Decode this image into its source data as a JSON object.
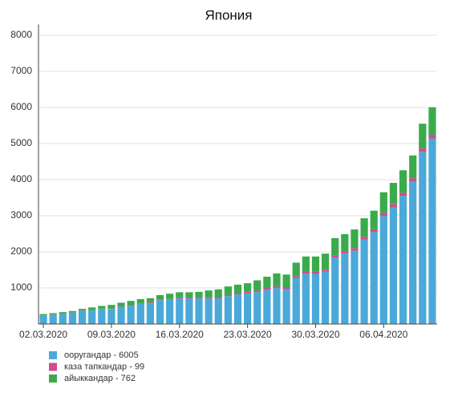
{
  "chart_data": {
    "type": "stacked_bar",
    "title": "Япония",
    "categories": [
      "02.03.2020",
      null,
      null,
      null,
      null,
      null,
      null,
      "09.03.2020",
      null,
      null,
      null,
      null,
      null,
      null,
      "16.03.2020",
      null,
      null,
      null,
      null,
      null,
      null,
      "23.03.2020",
      null,
      null,
      null,
      null,
      null,
      null,
      "30.03.2020",
      null,
      null,
      null,
      null,
      null,
      null,
      "06.04.2020",
      null,
      null,
      null,
      null,
      null
    ],
    "series": [
      {
        "name": "ооругандар - 6005",
        "color": "#4ba9d9",
        "values": [
          237,
          251,
          281,
          308,
          368,
          378,
          418,
          420,
          478,
          507,
          556,
          576,
          660,
          674,
          708,
          707,
          715,
          707,
          712,
          773,
          819,
          854,
          883,
          957,
          996,
          965,
          1277,
          1392,
          1390,
          1449,
          1845,
          1952,
          2036,
          2343,
          2549,
          2995,
          3233,
          3550,
          3946,
          4771,
          5144
        ]
      },
      {
        "name": "каза тапкандар - 99",
        "color": "#d24b8f",
        "values": [
          6,
          6,
          6,
          6,
          6,
          6,
          6,
          9,
          10,
          15,
          16,
          21,
          22,
          22,
          28,
          29,
          31,
          32,
          33,
          35,
          36,
          41,
          42,
          43,
          45,
          46,
          51,
          54,
          56,
          57,
          63,
          66,
          70,
          73,
          77,
          80,
          85,
          88,
          92,
          94,
          99
        ]
      },
      {
        "name": "айыккандар - 762",
        "color": "#3aab4b",
        "values": [
          32,
          43,
          43,
          46,
          46,
          76,
          76,
          101,
          102,
          118,
          118,
          118,
          118,
          144,
          144,
          144,
          144,
          191,
          215,
          232,
          235,
          235,
          285,
          310,
          359,
          359,
          372,
          424,
          424,
          444,
          472,
          472,
          514,
          514,
          514,
          575,
          592,
          622,
          632,
          685,
          762
        ]
      }
    ],
    "ylim": [
      0,
      8300
    ],
    "yticks": [
      1000,
      2000,
      3000,
      4000,
      5000,
      6000,
      7000,
      8000
    ],
    "grid": true
  }
}
